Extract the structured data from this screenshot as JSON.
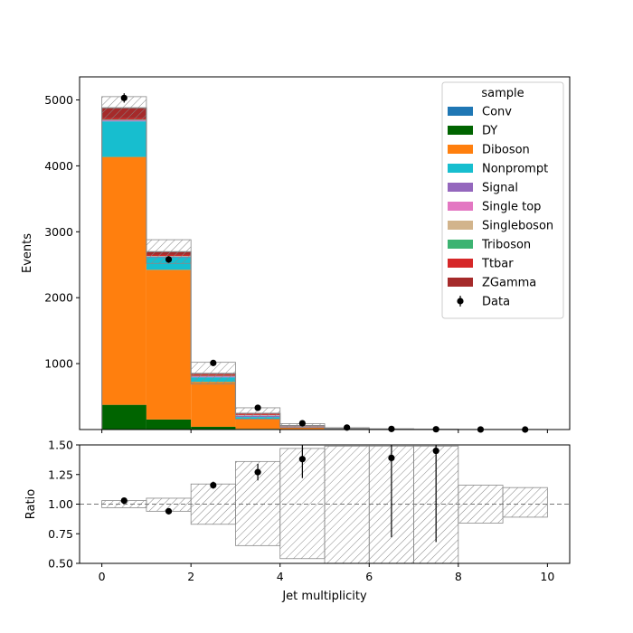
{
  "chart_data": {
    "type": "bar",
    "stacked": true,
    "title": "",
    "xlabel": "Jet multiplicity",
    "ylabel": "Events",
    "ratio_ylabel": "Ratio",
    "bin_edges": [
      0,
      1,
      2,
      3,
      4,
      5,
      6,
      7,
      8,
      9,
      10
    ],
    "xlim": [
      -0.5,
      10.5
    ],
    "ylim": [
      0,
      5350
    ],
    "ratio_ylim": [
      0.5,
      1.5
    ],
    "x_ticks": [
      "0",
      "2",
      "4",
      "6",
      "8",
      "10"
    ],
    "y_ticks": [
      "1000",
      "2000",
      "3000",
      "4000",
      "5000"
    ],
    "ratio_ticks": [
      "0.50",
      "0.75",
      "1.00",
      "1.25",
      "1.50"
    ],
    "legend": {
      "title": "sample",
      "placement": "top-right"
    },
    "series": [
      {
        "name": "Conv",
        "color": "#1f77b4",
        "values": [
          5,
          3,
          2,
          1,
          0,
          0,
          0,
          0,
          0,
          0
        ]
      },
      {
        "name": "DY",
        "color": "#006400",
        "values": [
          370,
          150,
          40,
          10,
          3,
          1,
          0,
          0,
          0,
          0
        ]
      },
      {
        "name": "Diboson",
        "color": "#ff7f0e",
        "values": [
          3760,
          2270,
          680,
          150,
          25,
          7,
          2,
          1,
          0.5,
          0.3
        ]
      },
      {
        "name": "Nonprompt",
        "color": "#17becf",
        "values": [
          540,
          190,
          70,
          30,
          8,
          2,
          1,
          0.5,
          0.2,
          0.1
        ]
      },
      {
        "name": "Signal",
        "color": "#9467bd",
        "values": [
          10,
          8,
          12,
          18,
          6,
          2,
          0.5,
          0.2,
          0.1,
          0.1
        ]
      },
      {
        "name": "Single top",
        "color": "#e377c2",
        "values": [
          5,
          4,
          4,
          6,
          3,
          1,
          0.5,
          0.2,
          0.1,
          0
        ]
      },
      {
        "name": "Singleboson",
        "color": "#d2b48c",
        "values": [
          5,
          3,
          2,
          1,
          0.5,
          0,
          0,
          0,
          0,
          0
        ]
      },
      {
        "name": "Triboson",
        "color": "#3cb371",
        "values": [
          5,
          5,
          5,
          5,
          3,
          1,
          0.5,
          0.2,
          0.1,
          0
        ]
      },
      {
        "name": "Ttbar",
        "color": "#d62728",
        "values": [
          20,
          15,
          20,
          20,
          10,
          3,
          1,
          0.5,
          0.2,
          0.1
        ]
      },
      {
        "name": "ZGamma",
        "color": "#a52a2a",
        "values": [
          160,
          50,
          15,
          5,
          2,
          1,
          0,
          0,
          0,
          0
        ]
      }
    ],
    "mc_total": [
      4880,
      2698,
      850,
      246,
      60.5,
      18,
      6,
      2.6,
      1.2,
      0.6
    ],
    "mc_uncertainty_band": {
      "upper": [
        5050,
        2880,
        1020,
        330,
        90,
        28,
        12,
        5,
        2.5,
        1.5
      ],
      "lower": [
        4700,
        2520,
        690,
        160,
        30,
        8,
        2,
        0.5,
        0.2,
        0.1
      ]
    },
    "data": {
      "name": "Data",
      "x": [
        0.5,
        1.5,
        2.5,
        3.5,
        4.5,
        5.5,
        6.5,
        7.5,
        8.5,
        9.5
      ],
      "y": [
        5030,
        2580,
        1010,
        330,
        95,
        30,
        9,
        4,
        1,
        0
      ],
      "yerr": [
        71,
        51,
        32,
        18,
        10,
        5.5,
        3,
        2,
        1,
        0
      ]
    },
    "ratio": {
      "x": [
        0.5,
        1.5,
        2.5,
        3.5,
        4.5,
        6.5,
        7.5
      ],
      "y": [
        1.03,
        0.94,
        1.16,
        1.27,
        1.38,
        1.39,
        1.45
      ],
      "err": [
        0.015,
        0.02,
        0.03,
        0.07,
        0.16,
        0.67,
        0.77
      ],
      "band_upper": [
        1.03,
        1.05,
        1.17,
        1.36,
        1.47,
        1.49,
        1.49,
        1.49,
        1.16,
        1.14
      ],
      "band_lower": [
        0.97,
        0.94,
        0.83,
        0.65,
        0.54,
        0.5,
        0.5,
        0.5,
        0.84,
        0.89
      ],
      "reference_line": 1.0
    }
  }
}
